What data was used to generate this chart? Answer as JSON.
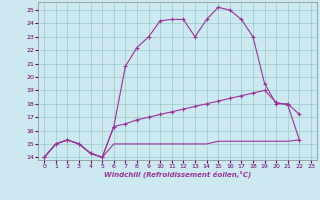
{
  "background_color": "#cce8f0",
  "grid_color": "#99cccc",
  "line_color": "#993399",
  "xlabel": "Windchill (Refroidissement éolien,°C)",
  "xlim": [
    -0.5,
    23.5
  ],
  "ylim": [
    13.8,
    25.6
  ],
  "xticks": [
    0,
    1,
    2,
    3,
    4,
    5,
    6,
    7,
    8,
    9,
    10,
    11,
    12,
    13,
    14,
    15,
    16,
    17,
    18,
    19,
    20,
    21,
    22,
    23
  ],
  "yticks": [
    14,
    15,
    16,
    17,
    18,
    19,
    20,
    21,
    22,
    23,
    24,
    25
  ],
  "line1_x": [
    0,
    1,
    2,
    3,
    4,
    5,
    6,
    7,
    8,
    9,
    10,
    11,
    12,
    13,
    14,
    15,
    16,
    17,
    18,
    19,
    20,
    21,
    22
  ],
  "line1_y": [
    14.0,
    15.0,
    15.3,
    15.0,
    14.3,
    14.0,
    16.3,
    20.8,
    22.2,
    23.0,
    24.2,
    24.3,
    24.3,
    23.0,
    24.3,
    25.2,
    25.0,
    24.3,
    23.0,
    19.5,
    18.0,
    18.0,
    17.2
  ],
  "line2_x": [
    0,
    1,
    2,
    3,
    4,
    5,
    6,
    7,
    8,
    9,
    10,
    11,
    12,
    13,
    14,
    15,
    16,
    17,
    18,
    19,
    20,
    21,
    22
  ],
  "line2_y": [
    14.0,
    15.0,
    15.3,
    15.0,
    14.3,
    14.0,
    16.3,
    16.5,
    16.8,
    17.0,
    17.2,
    17.4,
    17.6,
    17.8,
    18.0,
    18.2,
    18.4,
    18.6,
    18.8,
    19.0,
    18.1,
    17.9,
    15.3
  ],
  "line3_x": [
    0,
    1,
    2,
    3,
    4,
    5,
    6,
    7,
    8,
    9,
    10,
    11,
    12,
    13,
    14,
    15,
    16,
    17,
    18,
    19,
    20,
    21,
    22
  ],
  "line3_y": [
    14.0,
    15.0,
    15.3,
    15.0,
    14.3,
    14.0,
    15.0,
    15.0,
    15.0,
    15.0,
    15.0,
    15.0,
    15.0,
    15.0,
    15.0,
    15.2,
    15.2,
    15.2,
    15.2,
    15.2,
    15.2,
    15.2,
    15.3
  ]
}
